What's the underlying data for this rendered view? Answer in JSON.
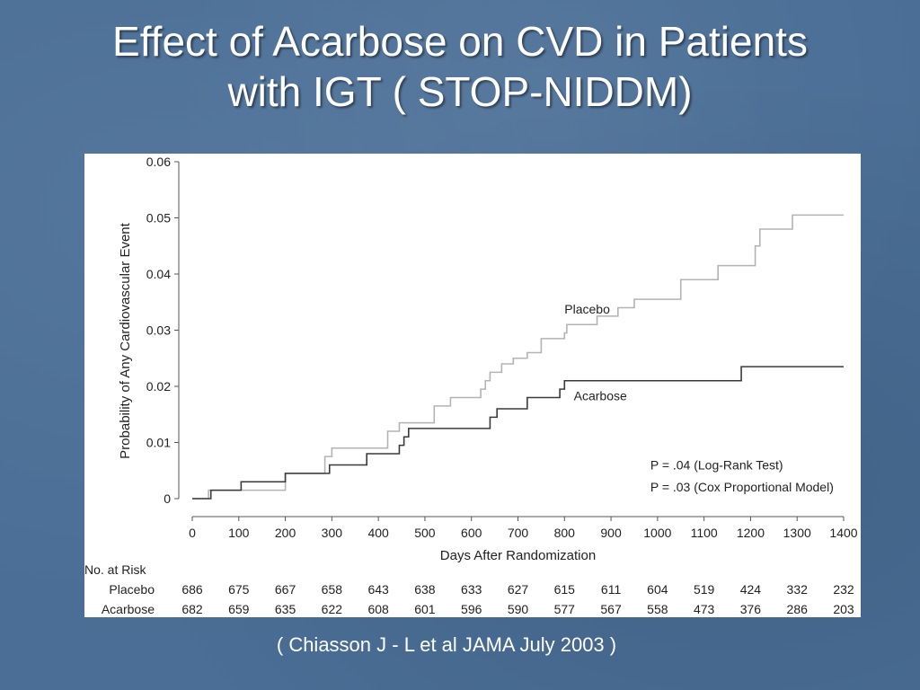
{
  "slide": {
    "title_line1": "Effect of Acarbose on CVD in Patients",
    "title_line2": "with IGT ( STOP-NIDDM)",
    "citation": "( Chiasson J - L et al JAMA July 2003 )"
  },
  "colors": {
    "background": "#4a6e96",
    "placebo": "#b3b3b3",
    "acarbose": "#3a3a3a",
    "axis": "#555555"
  },
  "chart_data": {
    "type": "line",
    "title": "",
    "xlabel": "Days After Randomization",
    "ylabel": "Probability of Any Cardiovascular Event",
    "xlim": [
      0,
      1400
    ],
    "ylim": [
      0,
      0.06
    ],
    "x_ticks": [
      0,
      100,
      200,
      300,
      400,
      500,
      600,
      700,
      800,
      900,
      1000,
      1100,
      1200,
      1300,
      1400
    ],
    "x_tick_labels": [
      "0",
      "100",
      "200",
      "300",
      "400",
      "500",
      "600",
      "700",
      "800",
      "900",
      "1000",
      "1100",
      "1200",
      "1300",
      "1400"
    ],
    "y_ticks": [
      0,
      0.01,
      0.02,
      0.03,
      0.04,
      0.05,
      0.06
    ],
    "y_tick_labels": [
      "0",
      "0.01",
      "0.02",
      "0.03",
      "0.04",
      "0.05",
      "0.06"
    ],
    "grid": false,
    "series": [
      {
        "name": "Placebo",
        "step": true,
        "x": [
          0,
          35,
          200,
          285,
          300,
          420,
          445,
          520,
          555,
          620,
          630,
          640,
          665,
          690,
          720,
          750,
          800,
          805,
          870,
          915,
          950,
          1050,
          1130,
          1210,
          1220,
          1290,
          1400
        ],
        "y": [
          0,
          0.0015,
          0.0045,
          0.0075,
          0.009,
          0.012,
          0.0135,
          0.0165,
          0.018,
          0.0195,
          0.021,
          0.0225,
          0.024,
          0.025,
          0.026,
          0.0285,
          0.0295,
          0.031,
          0.0325,
          0.034,
          0.0355,
          0.039,
          0.0415,
          0.045,
          0.048,
          0.0505,
          0.0505
        ]
      },
      {
        "name": "Acarbose",
        "step": true,
        "x": [
          0,
          40,
          105,
          200,
          295,
          375,
          445,
          455,
          465,
          640,
          655,
          720,
          790,
          800,
          1180,
          1400
        ],
        "y": [
          0,
          0.0015,
          0.003,
          0.0045,
          0.006,
          0.008,
          0.0095,
          0.011,
          0.0125,
          0.0145,
          0.016,
          0.018,
          0.0195,
          0.021,
          0.0235,
          0.0235
        ]
      }
    ],
    "series_labels": [
      {
        "text": "Placebo",
        "x": 800,
        "y": 0.033
      },
      {
        "text": "Acarbose",
        "x": 820,
        "y": 0.0175
      }
    ],
    "annotations": [
      {
        "text": "P = .04 (Log-Rank Test)",
        "x": 1000,
        "y": 0.0052
      },
      {
        "text": "P = .03 (Cox Proportional Model)",
        "x": 1000,
        "y": 0.0013
      }
    ],
    "risk_table": {
      "title": "No. at Risk",
      "rows": [
        {
          "label": "Placebo",
          "values": [
            686,
            675,
            667,
            658,
            643,
            638,
            633,
            627,
            615,
            611,
            604,
            519,
            424,
            332,
            232
          ]
        },
        {
          "label": "Acarbose",
          "values": [
            682,
            659,
            635,
            622,
            608,
            601,
            596,
            590,
            577,
            567,
            558,
            473,
            376,
            286,
            203
          ]
        }
      ]
    }
  }
}
